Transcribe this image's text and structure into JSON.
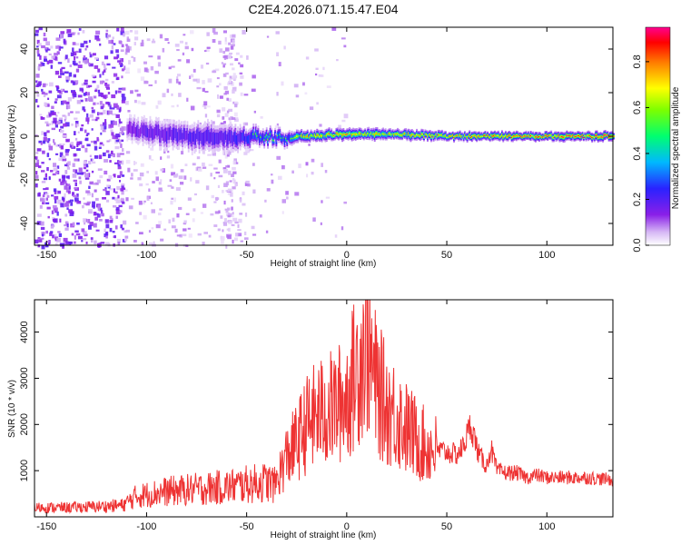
{
  "figure_title": "C2E4.2026.071.15.47.E04",
  "chart_data": [
    {
      "type": "heatmap",
      "title": "C2E4.2026.071.15.47.E04",
      "xlabel": "Height of straight line (km)",
      "ylabel": "Frequency (Hz)",
      "xlim": [
        -156,
        133
      ],
      "ylim": [
        -50,
        50
      ],
      "xticks": [
        -150,
        -100,
        -50,
        0,
        50,
        100
      ],
      "yticks": [
        -40,
        -20,
        0,
        20,
        40
      ],
      "colorbar": {
        "label": "Normalized spectral amplitude",
        "range": [
          0.0,
          0.95
        ],
        "ticks": [
          0.0,
          0.2,
          0.4,
          0.6,
          0.8
        ],
        "tick_labels": [
          "0.0",
          "0.2",
          "0.4",
          "0.6",
          "0.8"
        ],
        "colormap": "rainbow (white-purple-blue-cyan-green-yellow-red-magenta)"
      },
      "band": [
        {
          "x": -110,
          "center_hz": 3,
          "halfwidth_hz": 5,
          "amplitude": 0.25
        },
        {
          "x": -100,
          "center_hz": 2,
          "halfwidth_hz": 6,
          "amplitude": 0.32
        },
        {
          "x": -80,
          "center_hz": 0,
          "halfwidth_hz": 6,
          "amplitude": 0.35
        },
        {
          "x": -60,
          "center_hz": -1,
          "halfwidth_hz": 6,
          "amplitude": 0.35
        },
        {
          "x": -45,
          "center_hz": 0,
          "halfwidth_hz": 4,
          "amplitude": 0.5
        },
        {
          "x": -30,
          "center_hz": -1,
          "halfwidth_hz": 3,
          "amplitude": 0.55
        },
        {
          "x": -20,
          "center_hz": 0,
          "halfwidth_hz": 2.5,
          "amplitude": 0.7
        },
        {
          "x": 0,
          "center_hz": 1,
          "halfwidth_hz": 2.5,
          "amplitude": 0.75
        },
        {
          "x": 20,
          "center_hz": 1,
          "halfwidth_hz": 2.5,
          "amplitude": 0.7
        },
        {
          "x": 50,
          "center_hz": 0,
          "halfwidth_hz": 2,
          "amplitude": 0.75
        },
        {
          "x": 80,
          "center_hz": 0,
          "halfwidth_hz": 2,
          "amplitude": 0.8
        },
        {
          "x": 110,
          "center_hz": 0,
          "halfwidth_hz": 2,
          "amplitude": 0.85
        },
        {
          "x": 133,
          "center_hz": 0,
          "halfwidth_hz": 2,
          "amplitude": 0.85
        }
      ]
    },
    {
      "type": "line",
      "xlabel": "Height of straight line (km)",
      "ylabel": "SNR (10 * v/v)",
      "xlim": [
        -156,
        133
      ],
      "ylim": [
        0,
        4700
      ],
      "xticks": [
        -150,
        -100,
        -50,
        0,
        50,
        100
      ],
      "yticks": [
        1000,
        2000,
        3000,
        4000
      ],
      "color": "#ee3333",
      "series": [
        {
          "name": "SNR",
          "x": [
            -156,
            -140,
            -125,
            -112,
            -105,
            -90,
            -75,
            -60,
            -50,
            -40,
            -36,
            -30,
            -25,
            -20,
            -15,
            -10,
            -5,
            0,
            5,
            8,
            10,
            12,
            15,
            20,
            25,
            30,
            35,
            40,
            45,
            50,
            55,
            58,
            62,
            66,
            70,
            72,
            75,
            80,
            85,
            90,
            95,
            100,
            110,
            120,
            133
          ],
          "y": [
            200,
            200,
            220,
            250,
            450,
            550,
            600,
            650,
            700,
            750,
            700,
            1300,
            1600,
            2000,
            2200,
            2300,
            2400,
            2600,
            3200,
            3600,
            3900,
            3300,
            2800,
            2400,
            2200,
            1900,
            1700,
            1500,
            1450,
            1400,
            1350,
            1500,
            2000,
            1350,
            1100,
            1500,
            1000,
            950,
            950,
            850,
            900,
            850,
            850,
            850,
            800
          ]
        }
      ]
    }
  ]
}
